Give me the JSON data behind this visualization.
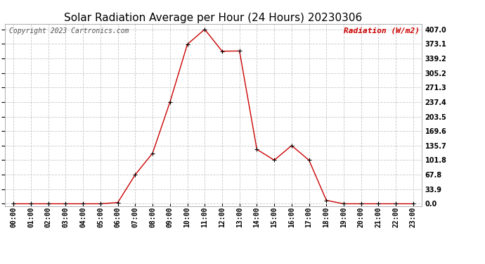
{
  "title": "Solar Radiation Average per Hour (24 Hours) 20230306",
  "copyright_text": "Copyright 2023 Cartronics.com",
  "ylabel": "Radiation (W/m2)",
  "hours": [
    "00:00",
    "01:00",
    "02:00",
    "03:00",
    "04:00",
    "05:00",
    "06:00",
    "07:00",
    "08:00",
    "09:00",
    "10:00",
    "11:00",
    "12:00",
    "13:00",
    "14:00",
    "15:00",
    "16:00",
    "17:00",
    "18:00",
    "19:00",
    "20:00",
    "21:00",
    "22:00",
    "23:00"
  ],
  "values": [
    0.0,
    0.0,
    0.0,
    0.0,
    0.0,
    0.0,
    3.0,
    67.8,
    118.0,
    237.4,
    372.0,
    407.0,
    356.0,
    356.5,
    127.0,
    101.8,
    135.7,
    101.8,
    8.0,
    0.0,
    0.0,
    0.0,
    0.0,
    0.0
  ],
  "line_color": "#cc0000",
  "marker_color": "#000000",
  "grid_color": "#c8c8c8",
  "bg_color": "#ffffff",
  "yticks": [
    0.0,
    33.9,
    67.8,
    101.8,
    135.7,
    169.6,
    203.5,
    237.4,
    271.3,
    305.2,
    339.2,
    373.1,
    407.0
  ],
  "ylim": [
    0,
    407.0
  ],
  "title_fontsize": 11,
  "label_fontsize": 8,
  "tick_fontsize": 7,
  "copyright_fontsize": 7,
  "ylabel_color": "#cc0000",
  "title_color": "#000000",
  "fig_width": 6.9,
  "fig_height": 3.75,
  "dpi": 100
}
